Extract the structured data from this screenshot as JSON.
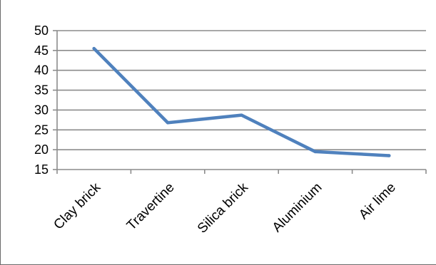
{
  "chart_data": {
    "type": "line",
    "title": "",
    "xlabel": "",
    "ylabel": "",
    "categories": [
      "Clay brick",
      "Travertine",
      "Silica brick",
      "Aluminium",
      "Air lime"
    ],
    "series": [
      {
        "values": [
          45.5,
          26.8,
          28.7,
          19.5,
          18.5
        ]
      }
    ],
    "ylim": [
      15,
      50
    ],
    "yticks": [
      "15",
      "20",
      "25",
      "30",
      "35",
      "40",
      "45",
      "50"
    ],
    "grid": true,
    "legend": "none",
    "line_color": "#4f81bd",
    "grid_color": "#8c8c8c",
    "axis_color": "#8c8c8c"
  }
}
